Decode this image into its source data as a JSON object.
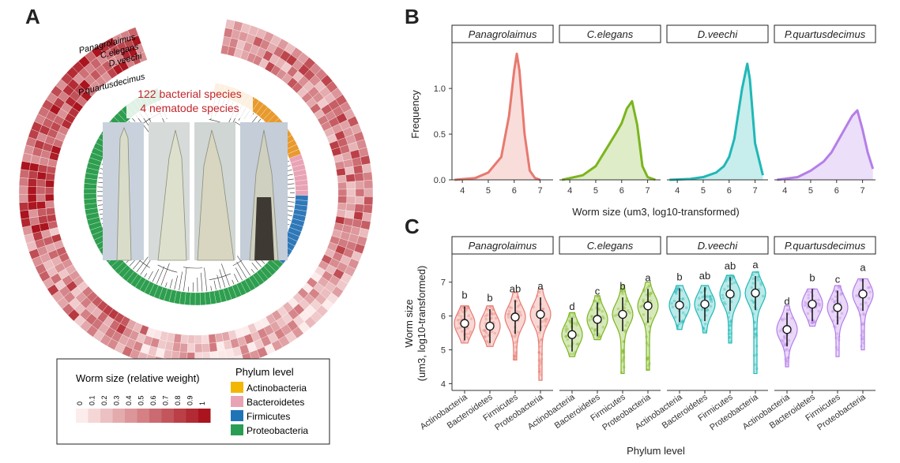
{
  "panels": {
    "a": "A",
    "b": "B",
    "c": "C"
  },
  "phylo": {
    "annotation_line1": "122 bacterial species",
    "annotation_line2": "4 nematode species",
    "ring_labels": [
      "Panagrolaimus",
      "C.elegans",
      "D.veechi",
      "P.quartusdecimus"
    ],
    "phylum_colors": {
      "Actinobacteria": "#e89a2e",
      "Bacteroidetes": "#e8a3b5",
      "Firmicutes": "#2f78b8",
      "Proteobacteria": "#2e9e4f"
    },
    "legend": {
      "title": "Worm size (relative weight)",
      "scale": [
        "0",
        "0.1",
        "0.2",
        "0.3",
        "0.4",
        "0.5",
        "0.6",
        "0.7",
        "0.8",
        "0.9",
        "1"
      ],
      "phylum_title": "Phylum level",
      "phyla": [
        {
          "name": "Actinobacteria",
          "color": "#f2b705"
        },
        {
          "name": "Bacteroidetes",
          "color": "#e8a3b5"
        },
        {
          "name": "Firmicutes",
          "color": "#1f73b7"
        },
        {
          "name": "Proteobacteria",
          "color": "#2a9d55"
        }
      ]
    }
  },
  "chart_data": [
    {
      "type": "area",
      "panel": "B",
      "ylabel": "Frequency",
      "xlabel": "Worm size (um3, log10-transformed)",
      "xlim": [
        3.6,
        7.5
      ],
      "ylim": [
        0,
        1.45
      ],
      "xticks": [
        "4",
        "5",
        "6",
        "7"
      ],
      "yticks": [
        "0.0",
        "0.5",
        "1.0"
      ],
      "series": [
        {
          "name": "Panagrolaimus",
          "color": "#e8796f",
          "x": [
            3.7,
            4.5,
            5.0,
            5.5,
            5.8,
            6.0,
            6.1,
            6.2,
            6.4,
            6.6,
            6.8,
            7.0
          ],
          "y": [
            0.0,
            0.02,
            0.08,
            0.25,
            0.7,
            1.2,
            1.38,
            1.2,
            0.5,
            0.1,
            0.02,
            0.0
          ]
        },
        {
          "name": "C.elegans",
          "color": "#7bb51e",
          "x": [
            3.7,
            4.5,
            5.0,
            5.5,
            5.8,
            6.0,
            6.2,
            6.4,
            6.6,
            6.8,
            7.0,
            7.3
          ],
          "y": [
            0.0,
            0.05,
            0.15,
            0.38,
            0.52,
            0.62,
            0.78,
            0.86,
            0.6,
            0.15,
            0.03,
            0.0
          ]
        },
        {
          "name": "D.veechi",
          "color": "#1fb8b6",
          "x": [
            3.7,
            4.5,
            5.0,
            5.5,
            5.8,
            6.0,
            6.2,
            6.5,
            6.7,
            6.8,
            7.0,
            7.3
          ],
          "y": [
            0.0,
            0.01,
            0.03,
            0.08,
            0.15,
            0.25,
            0.45,
            1.0,
            1.27,
            1.1,
            0.4,
            0.05
          ]
        },
        {
          "name": "P.quartusdecimus",
          "color": "#b57ee8",
          "x": [
            3.7,
            4.5,
            5.0,
            5.5,
            5.8,
            6.0,
            6.3,
            6.6,
            6.8,
            7.0,
            7.2,
            7.4
          ],
          "y": [
            0.0,
            0.03,
            0.1,
            0.2,
            0.3,
            0.4,
            0.55,
            0.7,
            0.76,
            0.55,
            0.3,
            0.12
          ]
        }
      ]
    },
    {
      "type": "violin",
      "panel": "C",
      "ylabel_line1": "Worm size",
      "ylabel_line2": "(um3, log10-transformed)",
      "xlabel": "Phylum level",
      "ylim": [
        3.8,
        7.6
      ],
      "yticks": [
        "4",
        "5",
        "6",
        "7"
      ],
      "categories": [
        "Actinobacteria",
        "Bacteroidetes",
        "Firmicutes",
        "Proteobacteria"
      ],
      "series": [
        {
          "name": "Panagrolaimus",
          "color": "#e8796f",
          "mean": [
            5.78,
            5.7,
            5.97,
            6.05
          ],
          "lo": [
            5.2,
            5.1,
            4.7,
            4.1
          ],
          "hi": [
            6.3,
            6.3,
            6.7,
            6.8
          ],
          "letters": [
            "b",
            "b",
            "ab",
            "a"
          ]
        },
        {
          "name": "C.elegans",
          "color": "#7bb51e",
          "mean": [
            5.45,
            5.9,
            6.05,
            6.3
          ],
          "lo": [
            4.8,
            5.3,
            4.3,
            4.4
          ],
          "hi": [
            6.1,
            6.6,
            6.9,
            7.0
          ],
          "letters": [
            "d",
            "c",
            "b",
            "a"
          ]
        },
        {
          "name": "D.veechi",
          "color": "#1fb8b6",
          "mean": [
            6.32,
            6.35,
            6.65,
            6.68
          ],
          "lo": [
            5.6,
            5.5,
            5.2,
            4.3
          ],
          "hi": [
            6.9,
            6.9,
            7.2,
            7.3
          ],
          "letters": [
            "b",
            "ab",
            "ab",
            "a"
          ]
        },
        {
          "name": "P.quartusdecimus",
          "color": "#b57ee8",
          "mean": [
            5.6,
            6.35,
            6.25,
            6.65
          ],
          "lo": [
            4.5,
            5.7,
            4.8,
            5.0
          ],
          "hi": [
            6.3,
            6.8,
            6.9,
            7.1
          ],
          "letters": [
            "d",
            "b",
            "c",
            "a"
          ]
        }
      ]
    }
  ]
}
